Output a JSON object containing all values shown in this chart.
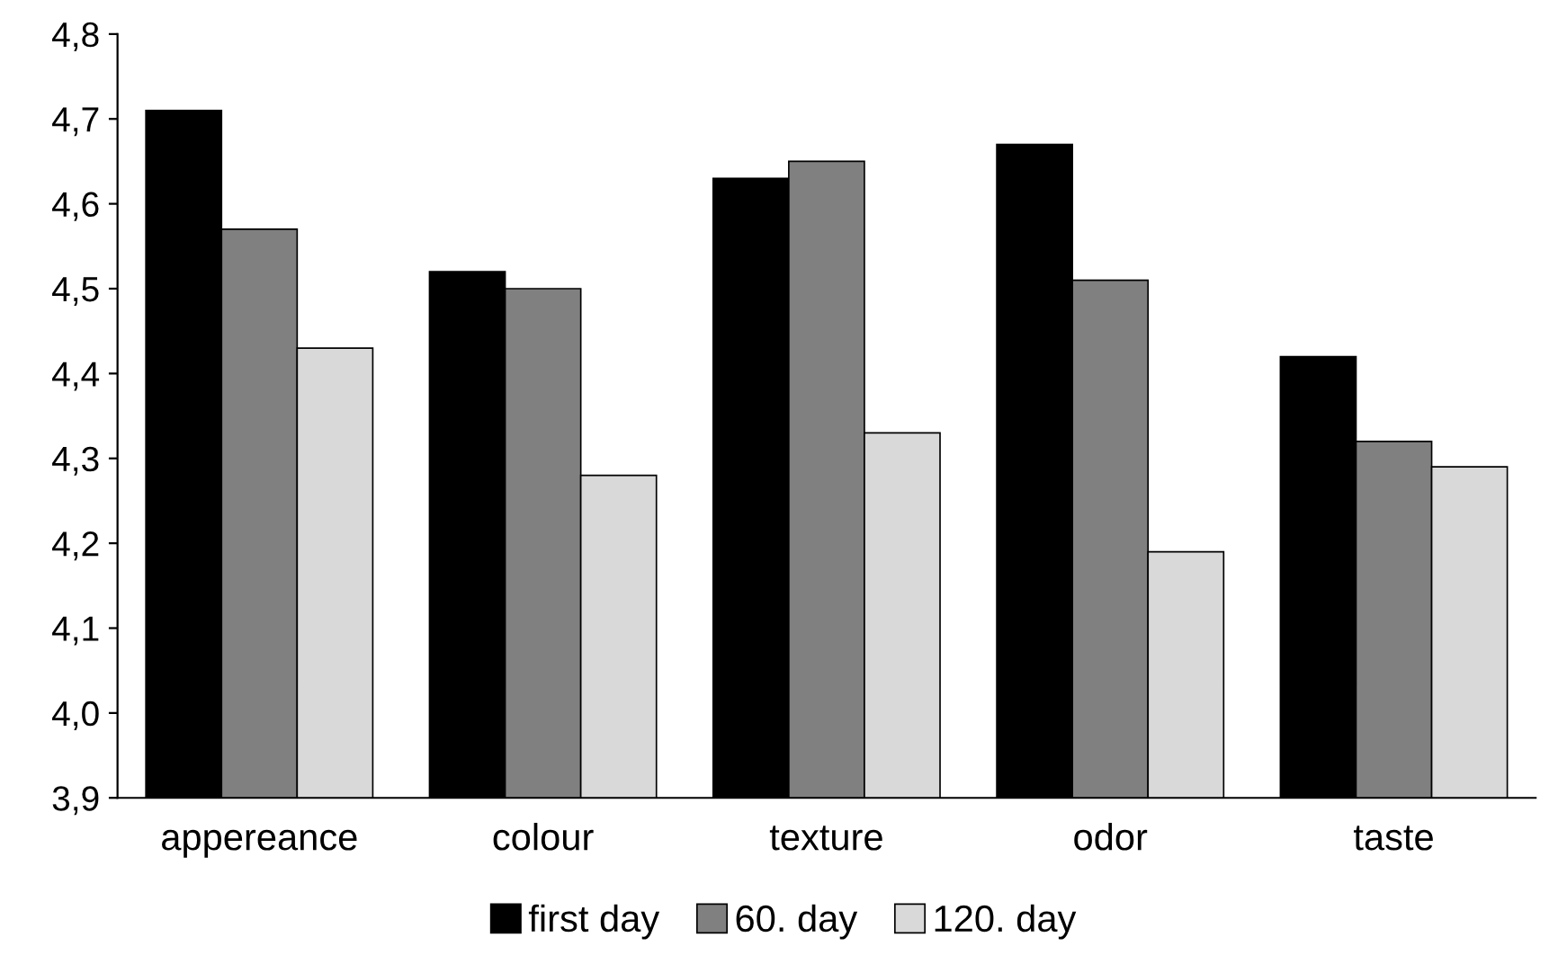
{
  "chart_data": {
    "type": "bar",
    "categories": [
      "appereance",
      "colour",
      "texture",
      "odor",
      "taste"
    ],
    "series": [
      {
        "name": "first day",
        "color": "#000000",
        "values": [
          4.71,
          4.52,
          4.63,
          4.67,
          4.42
        ]
      },
      {
        "name": "60. day",
        "color": "#808080",
        "values": [
          4.57,
          4.5,
          4.65,
          4.51,
          4.32
        ]
      },
      {
        "name": "120. day",
        "color": "#d9d9d9",
        "values": [
          4.43,
          4.28,
          4.33,
          4.19,
          4.29
        ]
      }
    ],
    "ylim": [
      3.9,
      4.8
    ],
    "yticks": [
      {
        "value": 3.9,
        "label": "3,9"
      },
      {
        "value": 4.0,
        "label": "4,0"
      },
      {
        "value": 4.1,
        "label": "4,1"
      },
      {
        "value": 4.2,
        "label": "4,2"
      },
      {
        "value": 4.3,
        "label": "4,3"
      },
      {
        "value": 4.4,
        "label": "4,4"
      },
      {
        "value": 4.5,
        "label": "4,5"
      },
      {
        "value": 4.6,
        "label": "4,6"
      },
      {
        "value": 4.7,
        "label": "4,7"
      },
      {
        "value": 4.8,
        "label": "4,8"
      }
    ],
    "grid": false,
    "legend": "bottom"
  }
}
